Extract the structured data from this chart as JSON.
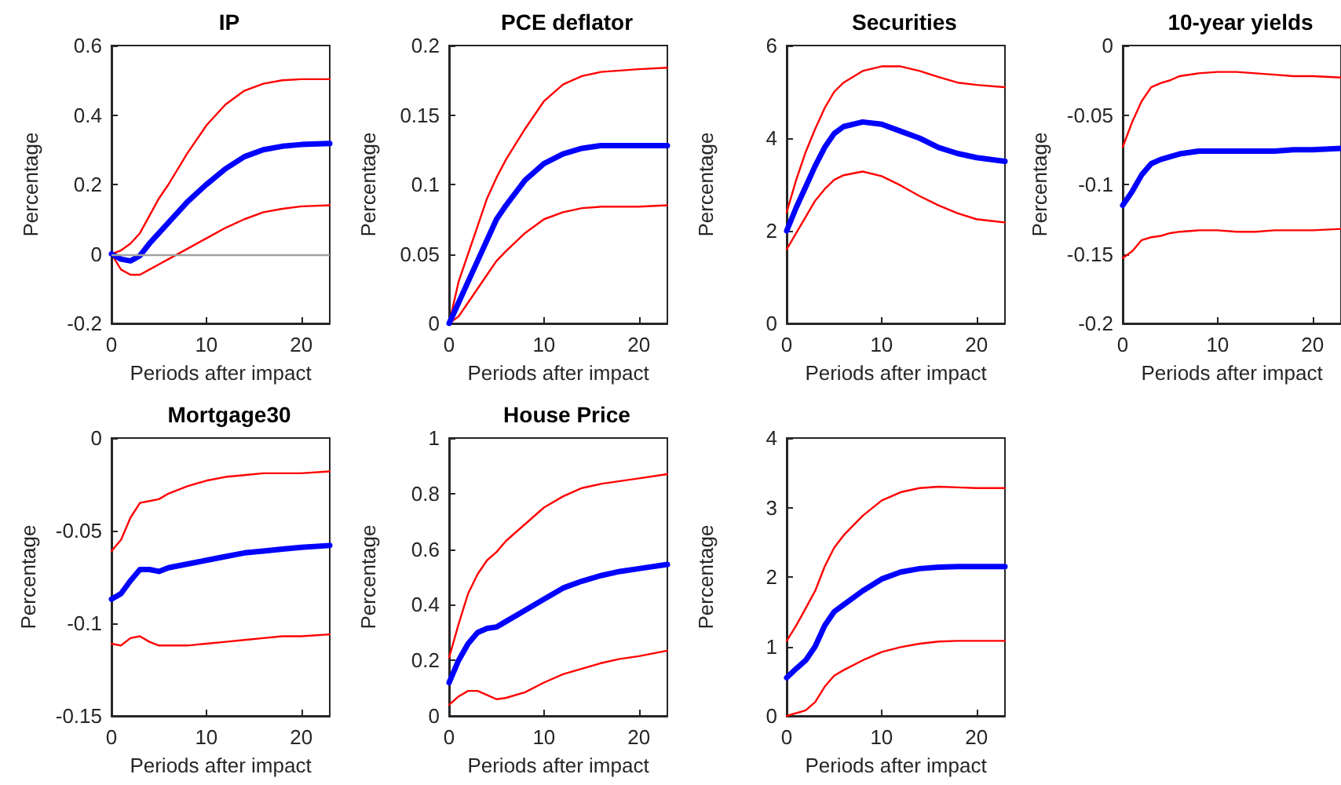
{
  "chart_data": [
    {
      "type": "line",
      "title": "IP",
      "xlabel": "Periods after impact",
      "ylabel": "Percentage",
      "x": [
        0,
        1,
        2,
        3,
        4,
        5,
        6,
        8,
        10,
        12,
        14,
        16,
        18,
        20,
        23
      ],
      "xlim": [
        0,
        23
      ],
      "xticks": [
        0,
        10,
        20
      ],
      "ylim": [
        -0.2,
        0.6
      ],
      "yticks": [
        -0.2,
        0,
        0.2,
        0.4,
        0.6
      ],
      "ref_lines": [
        {
          "axis": "y",
          "value": 0,
          "label": null,
          "color": "#a0a0a0"
        }
      ],
      "series": [
        {
          "color": "#ff0000",
          "values": [
            0,
            -0.045,
            -0.06,
            -0.06,
            -0.045,
            -0.03,
            -0.015,
            0.015,
            0.045,
            0.075,
            0.1,
            0.12,
            0.13,
            0.137,
            0.14
          ]
        },
        {
          "color": "#0000ff",
          "values": [
            0,
            -0.015,
            -0.02,
            -0.005,
            0.03,
            0.06,
            0.09,
            0.15,
            0.2,
            0.245,
            0.28,
            0.3,
            0.31,
            0.315,
            0.318
          ]
        },
        {
          "color": "#ff0000",
          "values": [
            0,
            0.01,
            0.03,
            0.06,
            0.11,
            0.16,
            0.2,
            0.29,
            0.37,
            0.43,
            0.47,
            0.49,
            0.5,
            0.503,
            0.503
          ]
        }
      ]
    },
    {
      "type": "line",
      "title": "PCE deflator",
      "xlabel": "Periods after impact",
      "ylabel": "Percentage",
      "x": [
        0,
        1,
        2,
        3,
        4,
        5,
        6,
        8,
        10,
        12,
        14,
        16,
        18,
        20,
        23
      ],
      "xlim": [
        0,
        23
      ],
      "xticks": [
        0,
        10,
        20
      ],
      "ylim": [
        0,
        0.2
      ],
      "yticks": [
        0,
        0.05,
        0.1,
        0.15,
        0.2
      ],
      "series": [
        {
          "color": "#ff0000",
          "values": [
            0,
            0.005,
            0.015,
            0.025,
            0.035,
            0.045,
            0.052,
            0.065,
            0.075,
            0.08,
            0.083,
            0.084,
            0.084,
            0.084,
            0.085
          ]
        },
        {
          "color": "#0000ff",
          "values": [
            0,
            0.015,
            0.03,
            0.045,
            0.06,
            0.075,
            0.085,
            0.103,
            0.115,
            0.122,
            0.126,
            0.128,
            0.128,
            0.128,
            0.128
          ]
        },
        {
          "color": "#ff0000",
          "values": [
            0,
            0.03,
            0.05,
            0.07,
            0.09,
            0.105,
            0.118,
            0.14,
            0.16,
            0.172,
            0.178,
            0.181,
            0.182,
            0.183,
            0.184
          ]
        }
      ]
    },
    {
      "type": "line",
      "title": "Securities",
      "xlabel": "Periods after impact",
      "ylabel": "Percentage",
      "x": [
        0,
        1,
        2,
        3,
        4,
        5,
        6,
        8,
        10,
        12,
        14,
        16,
        18,
        20,
        23
      ],
      "xlim": [
        0,
        23
      ],
      "xticks": [
        0,
        10,
        20
      ],
      "ylim": [
        0,
        6
      ],
      "yticks": [
        0,
        2,
        4,
        6
      ],
      "series": [
        {
          "color": "#ff0000",
          "values": [
            1.6,
            1.95,
            2.3,
            2.65,
            2.9,
            3.1,
            3.2,
            3.28,
            3.18,
            2.98,
            2.75,
            2.55,
            2.38,
            2.25,
            2.18
          ]
        },
        {
          "color": "#0000ff",
          "values": [
            2.0,
            2.5,
            2.95,
            3.4,
            3.8,
            4.1,
            4.25,
            4.35,
            4.3,
            4.15,
            4.0,
            3.8,
            3.67,
            3.58,
            3.5
          ]
        },
        {
          "color": "#ff0000",
          "values": [
            2.4,
            3.1,
            3.7,
            4.2,
            4.65,
            5.0,
            5.2,
            5.45,
            5.55,
            5.55,
            5.45,
            5.32,
            5.2,
            5.15,
            5.1
          ]
        }
      ]
    },
    {
      "type": "line",
      "title": "10-year yields",
      "xlabel": "Periods after impact",
      "ylabel": "Percentage",
      "x": [
        0,
        1,
        2,
        3,
        4,
        5,
        6,
        8,
        10,
        12,
        14,
        16,
        18,
        20,
        23
      ],
      "xlim": [
        0,
        23
      ],
      "xticks": [
        0,
        10,
        20
      ],
      "ylim": [
        -0.2,
        0
      ],
      "yticks": [
        -0.2,
        -0.15,
        -0.1,
        -0.05,
        0
      ],
      "series": [
        {
          "color": "#ff0000",
          "values": [
            -0.153,
            -0.148,
            -0.14,
            -0.138,
            -0.137,
            -0.135,
            -0.134,
            -0.133,
            -0.133,
            -0.134,
            -0.134,
            -0.133,
            -0.133,
            -0.133,
            -0.132
          ]
        },
        {
          "color": "#0000ff",
          "values": [
            -0.115,
            -0.105,
            -0.093,
            -0.085,
            -0.082,
            -0.08,
            -0.078,
            -0.076,
            -0.076,
            -0.076,
            -0.076,
            -0.076,
            -0.075,
            -0.075,
            -0.074
          ]
        },
        {
          "color": "#ff0000",
          "values": [
            -0.073,
            -0.055,
            -0.04,
            -0.03,
            -0.027,
            -0.025,
            -0.022,
            -0.02,
            -0.019,
            -0.019,
            -0.02,
            -0.021,
            -0.022,
            -0.022,
            -0.023
          ]
        }
      ]
    },
    {
      "type": "line",
      "title": "Mortgage30",
      "xlabel": "Periods after impact",
      "ylabel": "Percentage",
      "x": [
        0,
        1,
        2,
        3,
        4,
        5,
        6,
        8,
        10,
        12,
        14,
        16,
        18,
        20,
        23
      ],
      "xlim": [
        0,
        23
      ],
      "xticks": [
        0,
        10,
        20
      ],
      "ylim": [
        -0.15,
        0
      ],
      "yticks": [
        -0.15,
        -0.1,
        -0.05,
        0
      ],
      "series": [
        {
          "color": "#ff0000",
          "values": [
            -0.111,
            -0.112,
            -0.108,
            -0.107,
            -0.11,
            -0.112,
            -0.112,
            -0.112,
            -0.111,
            -0.11,
            -0.109,
            -0.108,
            -0.107,
            -0.107,
            -0.106
          ]
        },
        {
          "color": "#0000ff",
          "values": [
            -0.087,
            -0.084,
            -0.077,
            -0.071,
            -0.071,
            -0.072,
            -0.07,
            -0.068,
            -0.066,
            -0.064,
            -0.062,
            -0.061,
            -0.06,
            -0.059,
            -0.058
          ]
        },
        {
          "color": "#ff0000",
          "values": [
            -0.061,
            -0.055,
            -0.043,
            -0.035,
            -0.034,
            -0.033,
            -0.03,
            -0.026,
            -0.023,
            -0.021,
            -0.02,
            -0.019,
            -0.019,
            -0.019,
            -0.018
          ]
        }
      ]
    },
    {
      "type": "line",
      "title": "House Price",
      "xlabel": "Periods after impact",
      "ylabel": "Percentage",
      "x": [
        0,
        1,
        2,
        3,
        4,
        5,
        6,
        8,
        10,
        12,
        14,
        16,
        18,
        20,
        23
      ],
      "xlim": [
        0,
        23
      ],
      "xticks": [
        0,
        10,
        20
      ],
      "ylim": [
        0,
        1
      ],
      "yticks": [
        0,
        0.2,
        0.4,
        0.6,
        0.8,
        1
      ],
      "series": [
        {
          "color": "#ff0000",
          "values": [
            0.04,
            0.07,
            0.09,
            0.09,
            0.075,
            0.06,
            0.065,
            0.085,
            0.12,
            0.15,
            0.17,
            0.19,
            0.205,
            0.215,
            0.235
          ]
        },
        {
          "color": "#0000ff",
          "values": [
            0.12,
            0.2,
            0.26,
            0.3,
            0.315,
            0.32,
            0.34,
            0.38,
            0.42,
            0.46,
            0.485,
            0.505,
            0.52,
            0.53,
            0.545
          ]
        },
        {
          "color": "#ff0000",
          "values": [
            0.21,
            0.33,
            0.44,
            0.51,
            0.56,
            0.59,
            0.63,
            0.69,
            0.75,
            0.79,
            0.82,
            0.835,
            0.845,
            0.855,
            0.87
          ]
        }
      ]
    },
    {
      "type": "line",
      "xlabel": "Periods after impact",
      "ylabel": "Percentage",
      "x": [
        0,
        1,
        2,
        3,
        4,
        5,
        6,
        8,
        10,
        12,
        14,
        16,
        18,
        20,
        23
      ],
      "xlim": [
        0,
        23
      ],
      "xticks": [
        0,
        10,
        20
      ],
      "ylim": [
        0,
        4
      ],
      "yticks": [
        0,
        1,
        2,
        3,
        4
      ],
      "series": [
        {
          "color": "#ff0000",
          "values": [
            0.0,
            0.04,
            0.08,
            0.2,
            0.42,
            0.58,
            0.66,
            0.8,
            0.92,
            0.99,
            1.04,
            1.07,
            1.08,
            1.08,
            1.08
          ]
        },
        {
          "color": "#0000ff",
          "values": [
            0.55,
            0.68,
            0.8,
            1.0,
            1.3,
            1.5,
            1.6,
            1.8,
            1.97,
            2.07,
            2.12,
            2.14,
            2.15,
            2.15,
            2.15
          ]
        },
        {
          "color": "#ff0000",
          "values": [
            1.08,
            1.3,
            1.55,
            1.8,
            2.15,
            2.42,
            2.6,
            2.88,
            3.1,
            3.22,
            3.28,
            3.3,
            3.29,
            3.28,
            3.28
          ]
        }
      ]
    }
  ]
}
